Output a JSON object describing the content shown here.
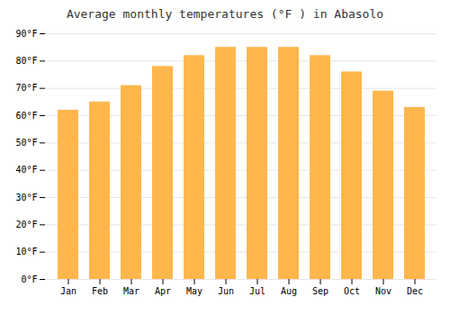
{
  "chart_data": {
    "type": "bar",
    "title": "Average monthly temperatures (°F ) in Abasolo",
    "categories": [
      "Jan",
      "Feb",
      "Mar",
      "Apr",
      "May",
      "Jun",
      "Jul",
      "Aug",
      "Sep",
      "Oct",
      "Nov",
      "Dec"
    ],
    "values": [
      62,
      65,
      71,
      78,
      82,
      85,
      85,
      85,
      82,
      76,
      69,
      63
    ],
    "color": "#FFB74D",
    "ylim": [
      0,
      90
    ],
    "yticks": [
      {
        "value": 0,
        "label": "0°F"
      },
      {
        "value": 10,
        "label": "10°F"
      },
      {
        "value": 20,
        "label": "20°F"
      },
      {
        "value": 30,
        "label": "30°F"
      },
      {
        "value": 40,
        "label": "40°F"
      },
      {
        "value": 50,
        "label": "50°F"
      },
      {
        "value": 60,
        "label": "60°F"
      },
      {
        "value": 70,
        "label": "70°F"
      },
      {
        "value": 80,
        "label": "80°F"
      },
      {
        "value": 90,
        "label": "90°F"
      }
    ],
    "grid": true
  }
}
